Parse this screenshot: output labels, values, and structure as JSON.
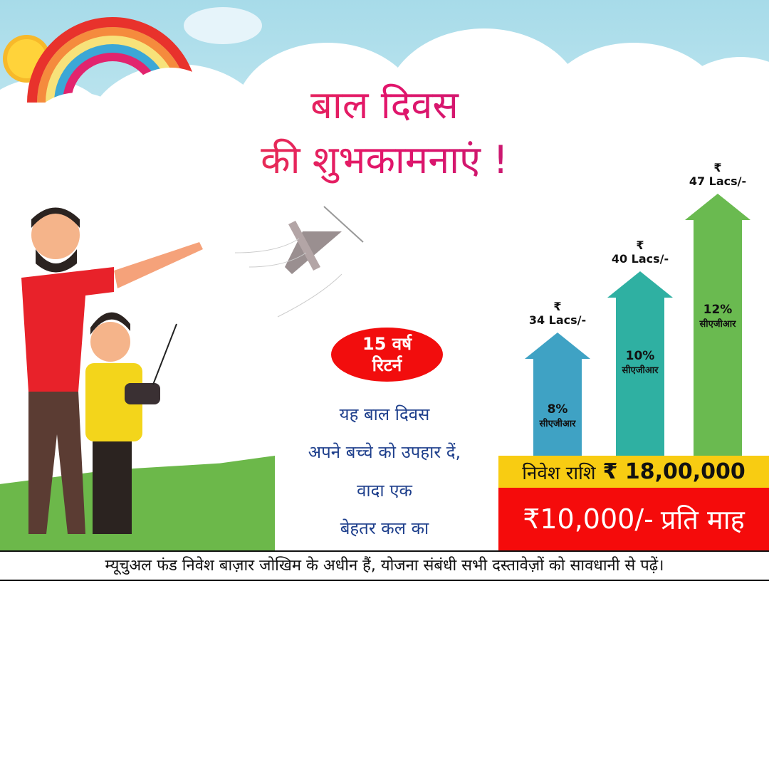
{
  "title": {
    "line1": "बाल दिवस",
    "line2": "की शुभकामनाएं !"
  },
  "badge": {
    "line1": "15 वर्ष",
    "line2": "रिटर्न"
  },
  "message": [
    "यह बाल दिवस",
    "अपने बच्चे को उपहार दें,",
    "वादा एक",
    "बेहतर कल का"
  ],
  "bars": [
    {
      "currency": "₹",
      "amount": "34 Lacs/-",
      "rate": "8%",
      "rate_label": "सीएजीआर",
      "color": "#3fa2c4"
    },
    {
      "currency": "₹",
      "amount": "40 Lacs/-",
      "rate": "10%",
      "rate_label": "सीएजीआर",
      "color": "#2fb0a2"
    },
    {
      "currency": "₹",
      "amount": "47 Lacs/-",
      "rate": "12%",
      "rate_label": "सीएजीआर",
      "color": "#6aba50"
    }
  ],
  "investment": {
    "label": "निवेश राशि",
    "amount": "₹ 18,00,000"
  },
  "monthly": {
    "amount": "₹10,000/-",
    "label": "प्रति माह"
  },
  "disclaimer": "म्यूचुअल फंड निवेश बाज़ार जोखिम के अधीन हैं, योजना संबंधी सभी दस्तावेज़ों को सावधानी से पढ़ें।"
}
